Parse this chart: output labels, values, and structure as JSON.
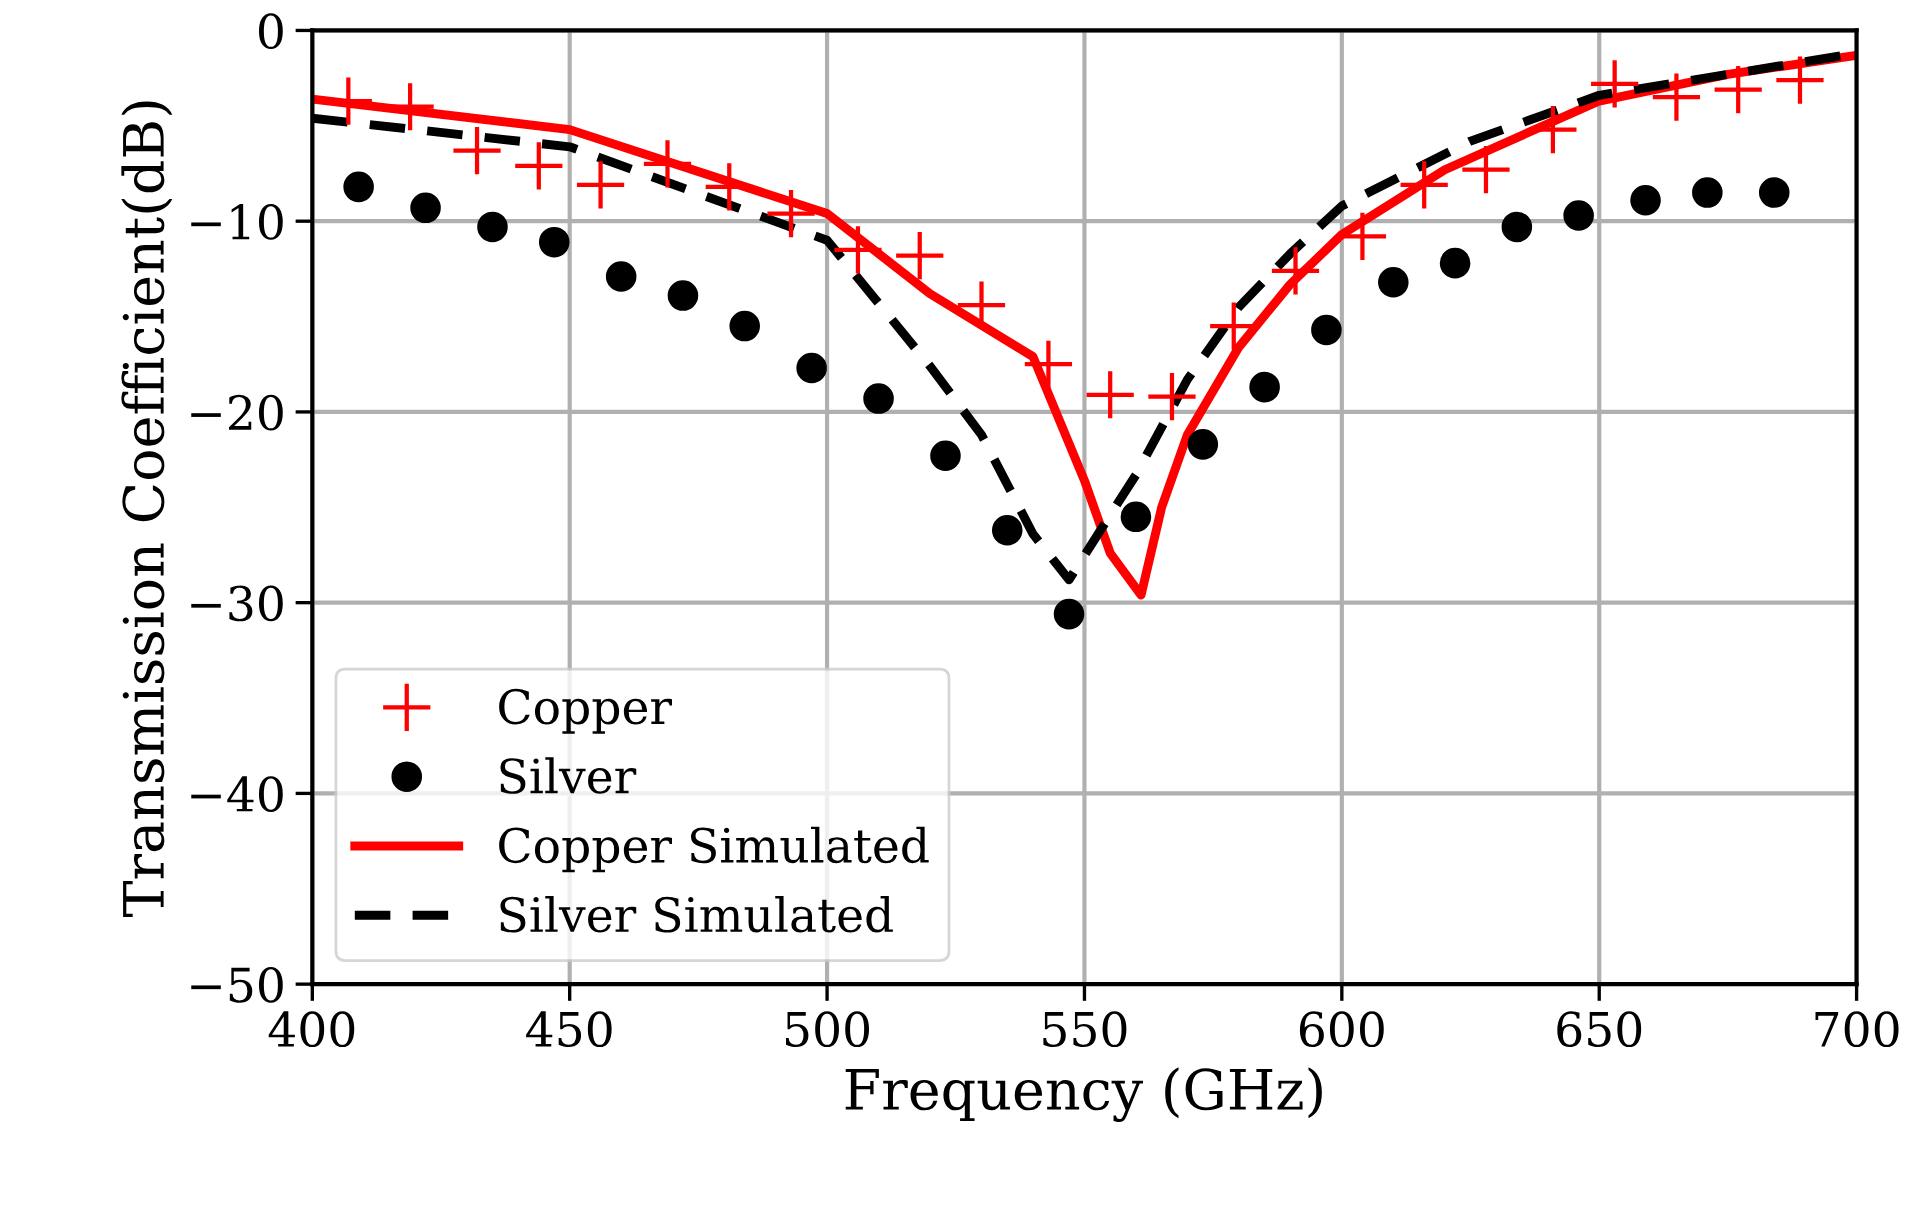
{
  "chart_data": {
    "type": "line",
    "xlabel": "Frequency (GHz)",
    "ylabel": "Transmission Coefficient(dB)",
    "xlim": [
      400,
      700
    ],
    "ylim": [
      -50,
      0
    ],
    "xticks": [
      400,
      450,
      500,
      550,
      600,
      650,
      700
    ],
    "yticks": [
      {
        "value": -50,
        "label": "−50"
      },
      {
        "value": -40,
        "label": "−40"
      },
      {
        "value": -30,
        "label": "−30"
      },
      {
        "value": -20,
        "label": "−20"
      },
      {
        "value": -10,
        "label": "−10"
      },
      0
    ],
    "grid": true,
    "legend": "bottom left",
    "series": [
      {
        "name": "Copper",
        "type": "scatter",
        "marker": "cross",
        "color": "#ff0000",
        "x": [
          407,
          419,
          432,
          444,
          456,
          469,
          481,
          493,
          506,
          518,
          530,
          543,
          555,
          567,
          579,
          591,
          604,
          616,
          628,
          641,
          653,
          665,
          677,
          689
        ],
        "values": [
          -3.7,
          -4.0,
          -6.3,
          -7.1,
          -8.1,
          -7.0,
          -8.2,
          -9.6,
          -11.5,
          -11.8,
          -14.4,
          -17.5,
          -19.1,
          -19.2,
          -15.5,
          -12.6,
          -10.8,
          -8.1,
          -7.3,
          -5.2,
          -2.8,
          -3.5,
          -3.1,
          -2.6
        ]
      },
      {
        "name": "Silver",
        "type": "scatter",
        "marker": "circle",
        "color": "#000000",
        "x": [
          409,
          422,
          435,
          447,
          460,
          472,
          484,
          497,
          510,
          523,
          535,
          547,
          560,
          573,
          585,
          597,
          610,
          622,
          634,
          646,
          659,
          671,
          684
        ],
        "values": [
          -8.2,
          -9.3,
          -10.3,
          -11.1,
          -12.9,
          -13.9,
          -15.5,
          -17.7,
          -19.3,
          -22.3,
          -26.2,
          -30.6,
          -25.5,
          -21.7,
          -18.7,
          -15.7,
          -13.2,
          -12.2,
          -10.3,
          -9.7,
          -8.9,
          -8.5,
          -8.5
        ]
      },
      {
        "name": "Copper Simulated",
        "type": "line",
        "line_style": "solid",
        "color": "#ff0000",
        "x": [
          400,
          450,
          500,
          520,
          540,
          550,
          555,
          561,
          565,
          570,
          580,
          590,
          600,
          620,
          650,
          675,
          700
        ],
        "values": [
          -3.6,
          -5.2,
          -9.6,
          -13.8,
          -17.1,
          -23.6,
          -27.4,
          -29.6,
          -25.0,
          -21.2,
          -16.6,
          -13.3,
          -10.7,
          -7.3,
          -3.7,
          -2.3,
          -1.3
        ]
      },
      {
        "name": "Silver Simulated",
        "type": "line",
        "line_style": "dashed",
        "color": "#000000",
        "x": [
          400,
          450,
          500,
          520,
          530,
          540,
          547,
          555,
          560,
          570,
          580,
          590,
          600,
          625,
          650,
          700
        ],
        "values": [
          -4.6,
          -6.1,
          -11.0,
          -17.6,
          -21.2,
          -26.4,
          -28.8,
          -25.4,
          -23.3,
          -18.3,
          -14.5,
          -11.7,
          -9.2,
          -5.8,
          -3.4,
          -1.2
        ]
      }
    ]
  }
}
